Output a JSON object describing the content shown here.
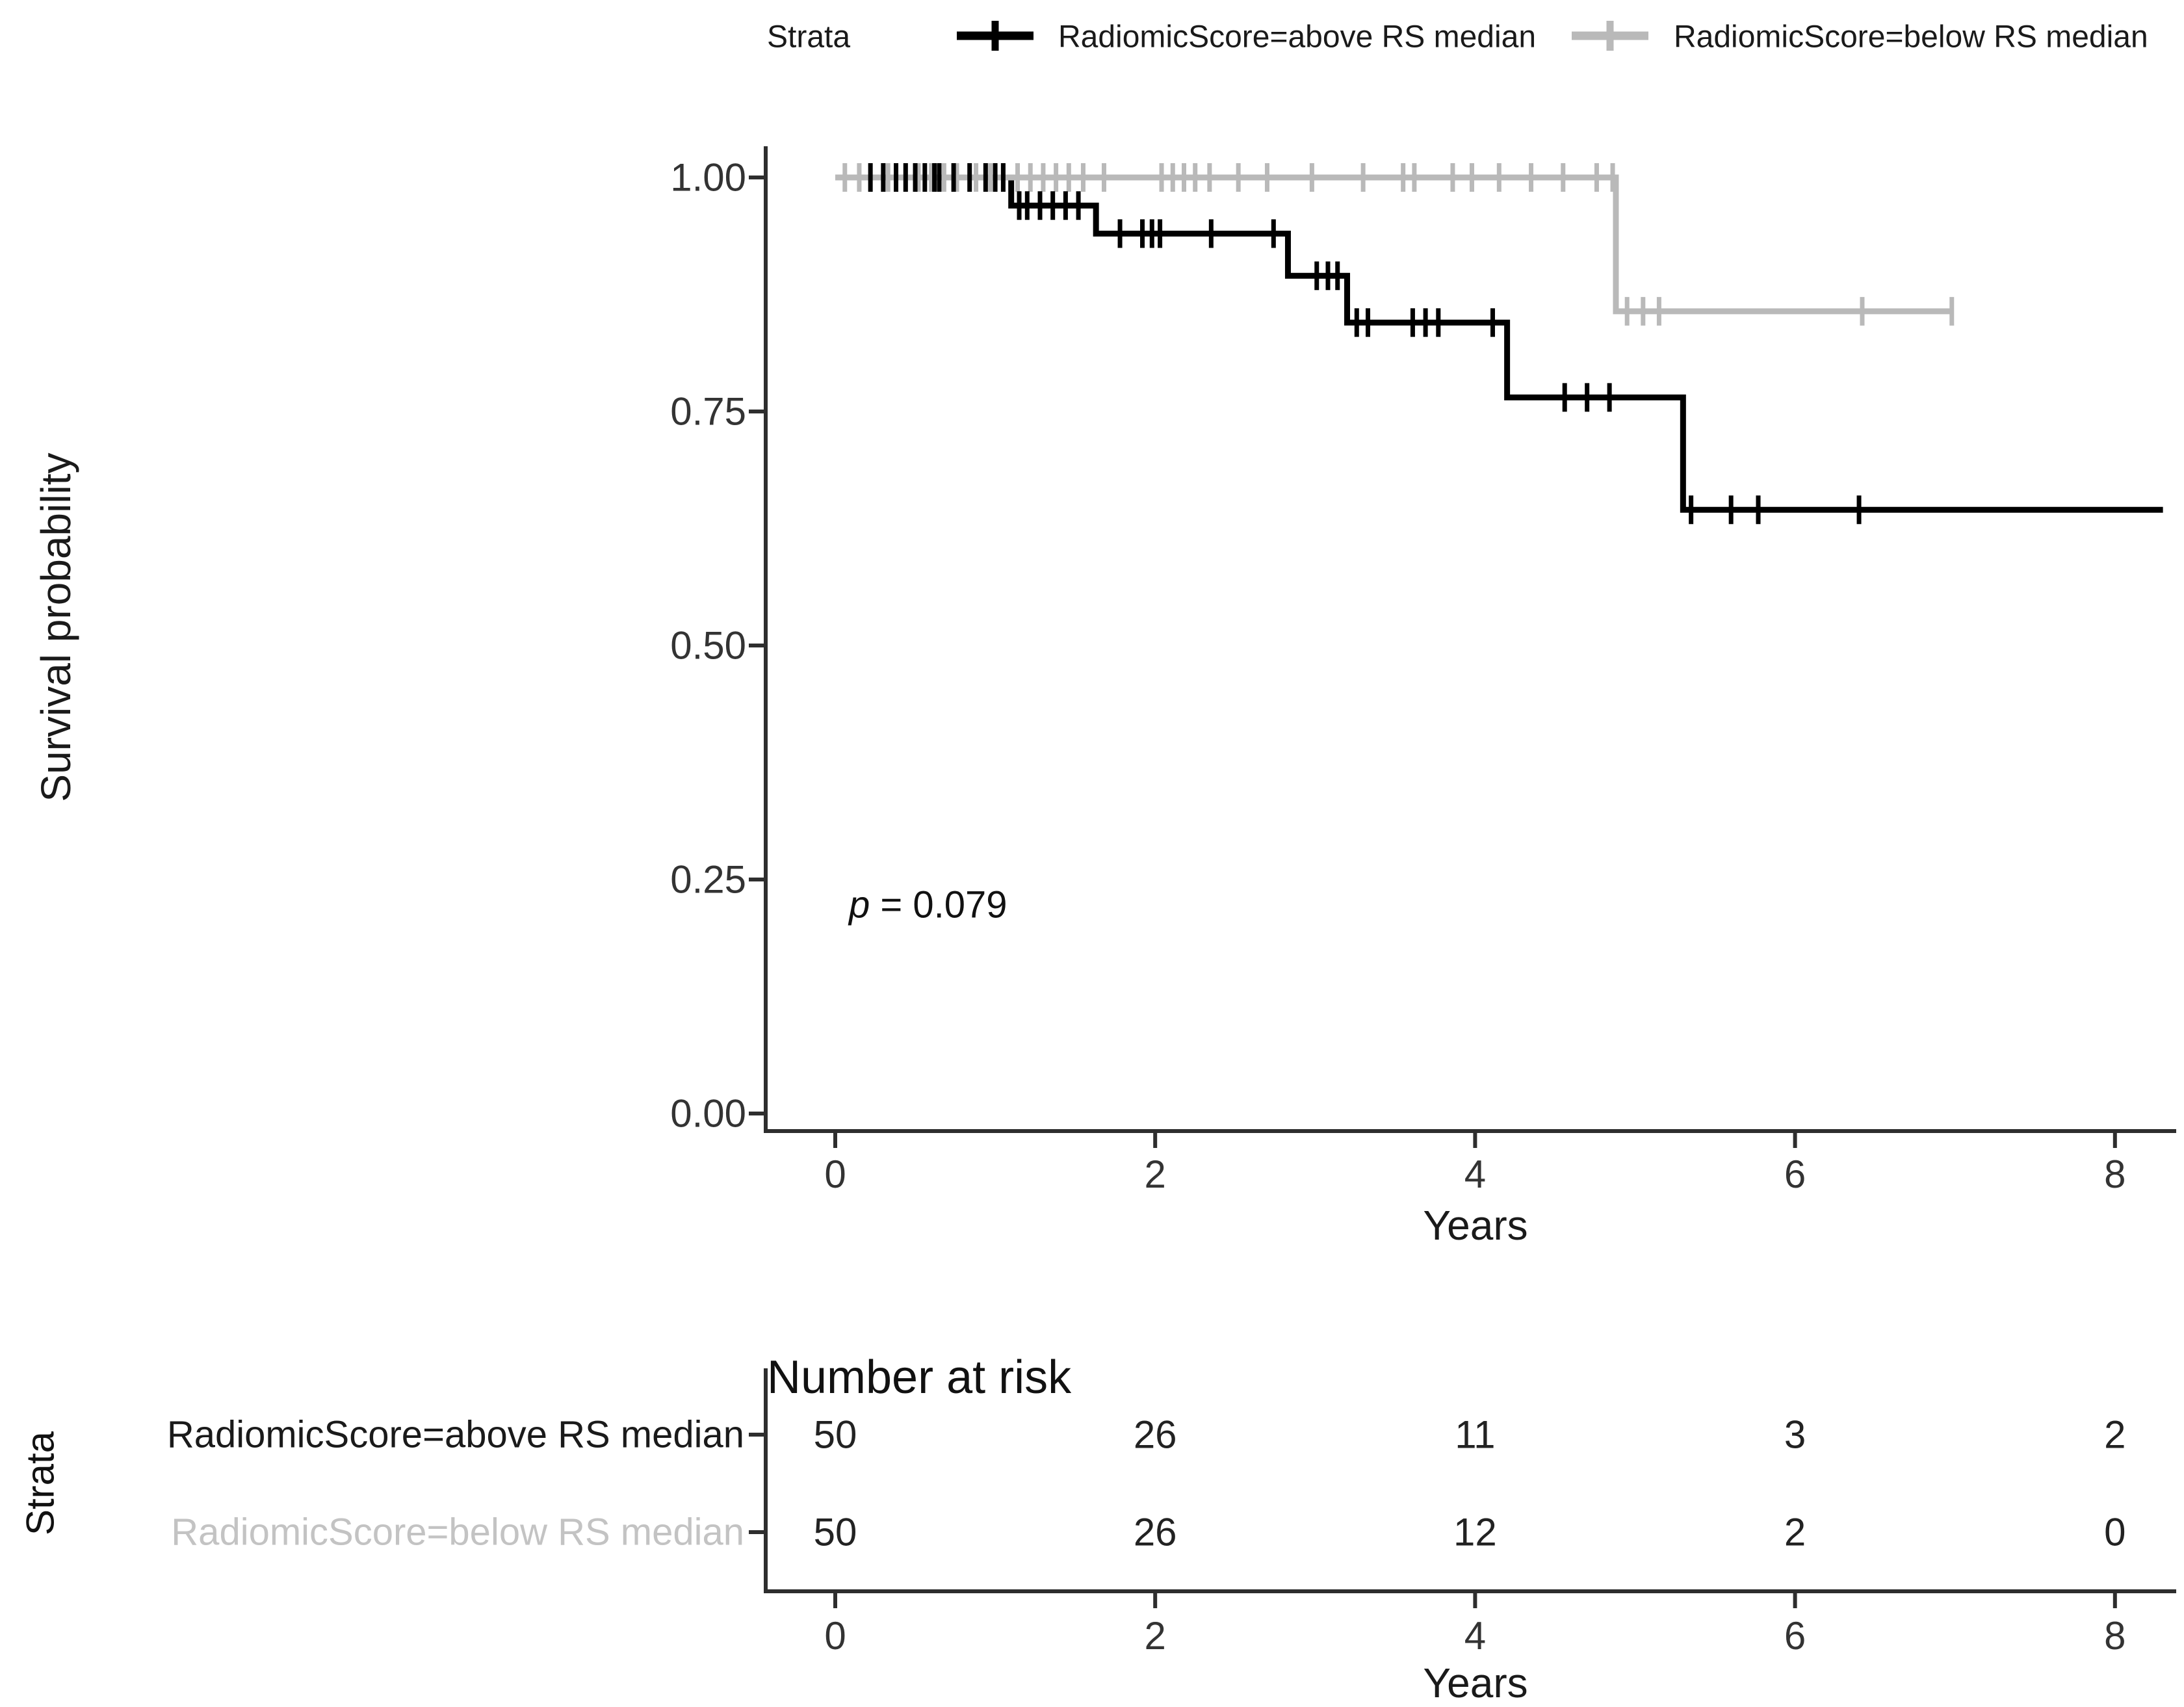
{
  "colors": {
    "above": "#000000",
    "below": "#b9b9b9",
    "below_text": "#c3c3c3",
    "axis": "#2e2e2e",
    "text": "#1a1a1a"
  },
  "legend": {
    "title": "Strata",
    "position": "top",
    "items": [
      {
        "label": "RadiomicScore=above RS median",
        "color": "#000000",
        "marker": "plus-line"
      },
      {
        "label": "RadiomicScore=below RS median",
        "color": "#b9b9b9",
        "marker": "plus-line"
      }
    ]
  },
  "axes": {
    "y": {
      "title": "Survival probability",
      "tick_labels": [
        "1.00",
        "0.75",
        "0.50",
        "0.25",
        "0.00"
      ],
      "tick_values": [
        1.0,
        0.75,
        0.5,
        0.25,
        0.0
      ]
    },
    "x": {
      "title": "Years",
      "tick_labels": [
        "0",
        "2",
        "4",
        "6",
        "8"
      ],
      "tick_values": [
        0,
        2,
        4,
        6,
        8
      ]
    }
  },
  "annotation": {
    "p_italic": "p",
    "p_rest": " = 0.079"
  },
  "chart_data": {
    "type": "line",
    "subtype": "kaplan-meier-step-curve",
    "title": "",
    "xlabel": "Years",
    "ylabel": "Survival probability",
    "xlim": [
      0,
      8.4
    ],
    "ylim": [
      0,
      1.0
    ],
    "x_ticks": [
      0,
      2,
      4,
      6,
      8
    ],
    "y_ticks": [
      0,
      0.25,
      0.5,
      0.75,
      1.0
    ],
    "grid": false,
    "legend_position": "top",
    "p_value_annotation": "p = 0.079",
    "series": [
      {
        "name": "RadiomicScore=above RS median",
        "color": "#000000",
        "steps": [
          [
            0,
            1.0
          ],
          [
            1.1,
            0.97
          ],
          [
            1.63,
            0.94
          ],
          [
            2.83,
            0.895
          ],
          [
            3.2,
            0.845
          ],
          [
            4.2,
            0.765
          ],
          [
            5.3,
            0.645
          ]
        ],
        "end_time": 8.3,
        "censor_times": [
          0.22,
          0.3,
          0.38,
          0.44,
          0.5,
          0.56,
          0.62,
          0.65,
          0.74,
          0.84,
          0.94,
          1.0,
          1.05,
          1.15,
          1.2,
          1.28,
          1.36,
          1.44,
          1.52,
          1.78,
          1.92,
          1.98,
          2.03,
          2.35,
          2.74,
          3.01,
          3.08,
          3.14,
          3.26,
          3.33,
          3.61,
          3.69,
          3.77,
          4.11,
          4.56,
          4.7,
          4.84,
          5.35,
          5.6,
          5.77,
          6.4
        ]
      },
      {
        "name": "RadiomicScore=below RS median",
        "color": "#b9b9b9",
        "steps": [
          [
            0,
            1.0
          ],
          [
            4.88,
            0.857
          ]
        ],
        "end_time": 6.98,
        "censor_times": [
          0.06,
          0.15,
          0.33,
          0.44,
          0.52,
          0.6,
          0.68,
          0.76,
          0.88,
          0.97,
          1.05,
          1.14,
          1.22,
          1.3,
          1.38,
          1.46,
          1.55,
          1.68,
          2.04,
          2.11,
          2.18,
          2.25,
          2.34,
          2.52,
          2.7,
          2.98,
          3.3,
          3.55,
          3.62,
          3.86,
          3.98,
          4.15,
          4.35,
          4.55,
          4.76,
          4.86,
          4.95,
          5.05,
          5.15,
          6.42,
          6.98
        ]
      }
    ]
  },
  "risk_table": {
    "title": "Number at risk",
    "side_label": "Strata",
    "x_title": "Years",
    "times": [
      0,
      2,
      4,
      6,
      8
    ],
    "rows": [
      {
        "label": "RadiomicScore=above RS median",
        "counts": [
          "50",
          "26",
          "11",
          "3",
          "2"
        ]
      },
      {
        "label": "RadiomicScore=below RS median",
        "counts": [
          "50",
          "26",
          "12",
          "2",
          "0"
        ]
      }
    ]
  }
}
